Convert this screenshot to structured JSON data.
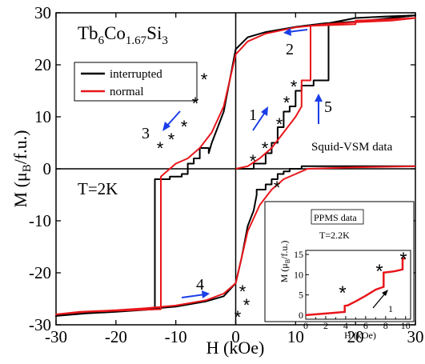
{
  "main": {
    "compound": {
      "prefix": "Tb",
      "n1": "6",
      "mid": "Co",
      "n2": "1.67",
      "mid2": "Si",
      "n3": "3"
    },
    "temperature": "T=2K",
    "method_label": "Squid-VSM data",
    "legend": {
      "interrupted": "interrupted",
      "normal": "normal"
    },
    "arrow_numbers": [
      "1",
      "2",
      "3",
      "4",
      "5"
    ],
    "step_marker": "*"
  },
  "inset": {
    "title": "PPMS data",
    "temperature": "T=2.2K",
    "arrow_number": "1",
    "xlabel": "H (kOe)",
    "ylabel": "M (μB/f.u.)"
  },
  "colors": {
    "interrupted": "#000000",
    "normal": "#e8161b",
    "arrow": "#1a3ee8",
    "inset_curve": "#e8161b"
  },
  "chart_data": [
    {
      "type": "line",
      "title": "",
      "xlabel": "H (kOe)",
      "ylabel": "M (μB/f.u.)",
      "xlim": [
        -30,
        30
      ],
      "ylim": [
        -30,
        30
      ],
      "xticks": [
        -30,
        -20,
        -10,
        0,
        10,
        20,
        30
      ],
      "yticks": [
        -30,
        -20,
        -10,
        0,
        10,
        20,
        30
      ],
      "legend": "upper left",
      "series": [
        {
          "name": "interrupted",
          "x": [
            0,
            3,
            3,
            5,
            5,
            6,
            6,
            7,
            7,
            8,
            8,
            9,
            9,
            10,
            10,
            11,
            11,
            13,
            13,
            15.5,
            15.5,
            20,
            25,
            30,
            26,
            20,
            15,
            10,
            5,
            2,
            0,
            -1,
            -2,
            -3,
            -4,
            -4.5,
            -4.5,
            -6,
            -6,
            -7,
            -7,
            -8,
            -8,
            -9,
            -9,
            -11,
            -11,
            -13.5,
            -13.5,
            -20,
            -25,
            -30,
            -26,
            -20,
            -15,
            -10,
            -5,
            -2,
            0,
            1,
            2,
            3,
            3.5,
            3.5,
            5,
            5,
            6,
            6,
            7,
            7,
            8,
            8,
            9,
            9,
            11,
            11,
            13,
            13,
            20,
            30
          ],
          "values": [
            0,
            0,
            1,
            1,
            3,
            3,
            5,
            5,
            8,
            8,
            11,
            11,
            12,
            12,
            15,
            15,
            16,
            16,
            17,
            17,
            28,
            29,
            29.3,
            29.5,
            29,
            28.3,
            28,
            27.3,
            26.3,
            25.3,
            23,
            17,
            11,
            8,
            5,
            3,
            4,
            4,
            2,
            2,
            1,
            1,
            -1,
            -1,
            -1.5,
            -1.5,
            -2,
            -2,
            -27,
            -27.5,
            -27.8,
            -28.3,
            -27.8,
            -27.5,
            -27,
            -26.5,
            -25.5,
            -24.5,
            -22,
            -17,
            -11,
            -8,
            -5,
            -4,
            -4,
            -3,
            -3,
            -2,
            -2,
            -1,
            -1,
            -0.5,
            -0.5,
            0,
            0,
            0.5,
            0.5,
            0.5,
            0.5,
            0.5
          ]
        },
        {
          "name": "normal",
          "x": [
            0,
            2,
            4,
            6,
            8,
            10,
            11,
            11,
            12,
            12.5,
            12.5,
            20,
            20,
            25,
            30,
            26,
            20,
            15,
            10,
            5,
            2,
            0,
            -1,
            -2,
            -4,
            -6,
            -8,
            -10,
            -11.5,
            -12.5,
            -12.5,
            -20,
            -25,
            -30,
            -26,
            -20,
            -15,
            -10,
            -5,
            -2,
            0,
            1,
            2,
            4,
            6,
            8,
            10,
            12,
            20,
            30
          ],
          "values": [
            0,
            0.5,
            2,
            4,
            7,
            10,
            12,
            17,
            17,
            17,
            27.5,
            27.8,
            28.5,
            28.7,
            29,
            28.5,
            28.2,
            27.8,
            27.2,
            26,
            24.5,
            22,
            17,
            12,
            7,
            4,
            2,
            1,
            -0.5,
            -1.5,
            -27,
            -27.3,
            -27.5,
            -28,
            -27.5,
            -27.2,
            -26.8,
            -26.3,
            -25.3,
            -24,
            -22,
            -17,
            -12,
            -7,
            -4,
            -2,
            -1,
            0,
            0.3,
            0.5
          ]
        }
      ]
    },
    {
      "type": "line",
      "title": "PPMS data",
      "xlabel": "H (kOe)",
      "ylabel": "M (μB/f.u.)",
      "xlim": [
        0,
        10.5
      ],
      "ylim": [
        -1,
        16
      ],
      "xticks": [
        0,
        1,
        2,
        3,
        4,
        5,
        6,
        7,
        8,
        9,
        10
      ],
      "yticks": [
        0,
        5,
        10,
        15
      ],
      "series": [
        {
          "x": [
            0,
            1,
            2,
            3,
            3.9,
            3.9,
            4.2,
            5,
            6,
            7,
            7.8,
            7.8,
            8.5,
            9,
            9.7,
            9.7,
            10
          ],
          "values": [
            0,
            0.2,
            0.4,
            0.6,
            0.8,
            2.3,
            2.4,
            3.4,
            4.8,
            6.3,
            7,
            10.5,
            10.7,
            10.9,
            11.3,
            14,
            14
          ]
        }
      ]
    }
  ]
}
